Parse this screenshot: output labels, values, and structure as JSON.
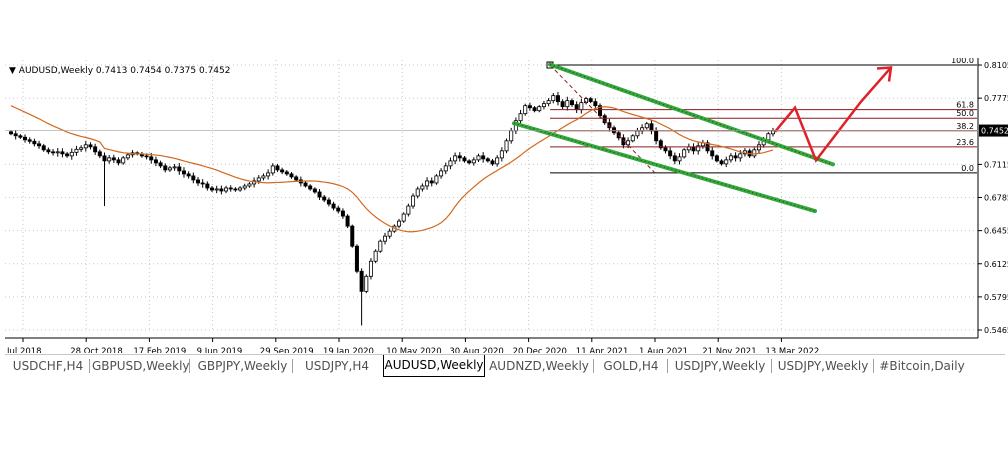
{
  "header": {
    "symbol": "AUDUSD,Weekly",
    "ohlc": "0.7413 0.7454 0.7375 0.7452"
  },
  "tabs": [
    {
      "label": "USDCHF,H4",
      "active": false
    },
    {
      "label": "GBPUSD,Weekly",
      "active": false
    },
    {
      "label": "GBPJPY,Weekly",
      "active": false
    },
    {
      "label": "USDJPY,H4",
      "active": false
    },
    {
      "label": "AUDUSD,Weekly",
      "active": true
    },
    {
      "label": "AUDNZD,Weekly",
      "active": false
    },
    {
      "label": "GOLD,H4",
      "active": false
    },
    {
      "label": "USDJPY,Weekly",
      "active": false
    },
    {
      "label": "USDJPY,Weekly",
      "active": false
    },
    {
      "label": "#Bitcoin,Daily",
      "active": false
    }
  ],
  "colors": {
    "up_candle": "#000000",
    "down_candle": "#000000",
    "moving_average": "#d2691e",
    "channel": "#2eab3c",
    "projection": "#e0202a",
    "fib_lines": "#8b1a1a",
    "price_marker_bg": "#000000",
    "price_marker_text": "#ffffff"
  },
  "chart_data": {
    "type": "candlestick",
    "title": "AUDUSD,Weekly",
    "x_ticks": [
      "Jul 2018",
      "28 Oct 2018",
      "17 Feb 2019",
      "9 Jun 2019",
      "29 Sep 2019",
      "19 Jan 2020",
      "10 May 2020",
      "30 Aug 2020",
      "20 Dec 2020",
      "11 Apr 2021",
      "1 Aug 2021",
      "21 Nov 2021",
      "13 Mar 2022"
    ],
    "y_ticks": [
      0.8105,
      0.7775,
      0.7115,
      0.6785,
      0.6455,
      0.6125,
      0.5795,
      0.5465
    ],
    "ylim": [
      0.5465,
      0.8155
    ],
    "current_price": "0.7452",
    "close_series": [
      0.742,
      0.74,
      0.7385,
      0.736,
      0.7345,
      0.732,
      0.73,
      0.726,
      0.724,
      0.723,
      0.724,
      0.722,
      0.72,
      0.7235,
      0.7265,
      0.728,
      0.731,
      0.729,
      0.724,
      0.72,
      0.715,
      0.718,
      0.716,
      0.713,
      0.718,
      0.721,
      0.723,
      0.722,
      0.72,
      0.719,
      0.716,
      0.713,
      0.71,
      0.706,
      0.708,
      0.709,
      0.705,
      0.702,
      0.7,
      0.696,
      0.693,
      0.692,
      0.688,
      0.686,
      0.687,
      0.685,
      0.688,
      0.687,
      0.686,
      0.688,
      0.69,
      0.692,
      0.695,
      0.698,
      0.7,
      0.703,
      0.71,
      0.706,
      0.704,
      0.702,
      0.699,
      0.696,
      0.693,
      0.69,
      0.687,
      0.684,
      0.679,
      0.676,
      0.672,
      0.668,
      0.665,
      0.66,
      0.65,
      0.63,
      0.605,
      0.585,
      0.6,
      0.615,
      0.625,
      0.635,
      0.64,
      0.645,
      0.65,
      0.655,
      0.662,
      0.67,
      0.68,
      0.687,
      0.69,
      0.695,
      0.693,
      0.7,
      0.705,
      0.71,
      0.715,
      0.72,
      0.718,
      0.715,
      0.713,
      0.716,
      0.72,
      0.717,
      0.715,
      0.712,
      0.718,
      0.725,
      0.735,
      0.745,
      0.755,
      0.762,
      0.77,
      0.768,
      0.765,
      0.769,
      0.772,
      0.775,
      0.78,
      0.774,
      0.769,
      0.775,
      0.771,
      0.766,
      0.773,
      0.777,
      0.774,
      0.77,
      0.76,
      0.753,
      0.748,
      0.743,
      0.738,
      0.731,
      0.735,
      0.74,
      0.745,
      0.748,
      0.752,
      0.745,
      0.735,
      0.728,
      0.725,
      0.72,
      0.715,
      0.719,
      0.726,
      0.729,
      0.725,
      0.73,
      0.733,
      0.725,
      0.72,
      0.715,
      0.712,
      0.716,
      0.72,
      0.718,
      0.722,
      0.725,
      0.72,
      0.726,
      0.731,
      0.736,
      0.742,
      0.7452
    ],
    "fibonacci": [
      {
        "label": "100.0",
        "price": 0.8105
      },
      {
        "label": "61.8",
        "price": 0.766
      },
      {
        "label": "50.0",
        "price": 0.7575
      },
      {
        "label": "38.2",
        "price": 0.745
      },
      {
        "label": "23.6",
        "price": 0.729
      },
      {
        "label": "0.0",
        "price": 0.703
      }
    ]
  }
}
